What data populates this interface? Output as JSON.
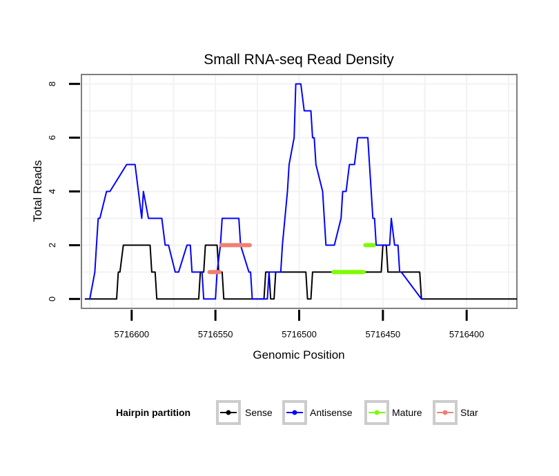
{
  "chart_data": {
    "type": "line",
    "title": "Small RNA-seq Read Density",
    "xlabel": "Genomic Position",
    "ylabel": "Total Reads",
    "xlim": [
      5716630,
      5716370
    ],
    "ylim": [
      -0.35,
      8.35
    ],
    "x_reversed": true,
    "grid": true,
    "x_ticks": [
      5716600,
      5716550,
      5716500,
      5716450,
      5716400
    ],
    "x_tick_labels": [
      "5716600",
      "5716550",
      "5716500",
      "5716450",
      "5716400"
    ],
    "y_ticks": [
      0,
      2,
      4,
      6,
      8
    ],
    "y_tick_labels": [
      "0",
      "2",
      "4",
      "6",
      "8"
    ],
    "legend": {
      "title": "Hairpin partition",
      "position": "bottom",
      "entries": [
        "Sense",
        "Antisense",
        "Mature",
        "Star"
      ]
    },
    "series": [
      {
        "name": "Sense",
        "color": "#000000",
        "x": [
          5716628,
          5716609,
          5716608,
          5716607,
          5716605,
          5716589,
          5716588,
          5716586,
          5716585,
          5716560,
          5716559,
          5716557,
          5716556,
          5716549,
          5716548,
          5716546,
          5716545,
          5716521,
          5716520,
          5716518,
          5716517,
          5716515,
          5716514,
          5716496,
          5716495,
          5716493,
          5716492,
          5716486,
          5716485,
          5716459,
          5716458,
          5716457,
          5716456,
          5716452,
          5716451,
          5716450,
          5716449,
          5716448,
          5716447,
          5716446,
          5716445,
          5716428,
          5716427,
          5716370
        ],
        "y": [
          0,
          0,
          1,
          1,
          2,
          2,
          1,
          1,
          0,
          0,
          1,
          1,
          2,
          2,
          1,
          1,
          0,
          0,
          1,
          1,
          0,
          0,
          1,
          1,
          0,
          0,
          1,
          1,
          1,
          1,
          1,
          1,
          1,
          1,
          1,
          2,
          2,
          2,
          1,
          1,
          1,
          1,
          0,
          0
        ]
      },
      {
        "name": "Antisense",
        "color": "#0000ff",
        "x": [
          5716626,
          5716625,
          5716622,
          5716621,
          5716620,
          5716619,
          5716615,
          5716613,
          5716603,
          5716602,
          5716601,
          5716600,
          5716599,
          5716598,
          5716594,
          5716593,
          5716590,
          5716588,
          5716587,
          5716582,
          5716580,
          5716578,
          5716574,
          5716572,
          5716567,
          5716565,
          5716564,
          5716562,
          5716561,
          5716558,
          5716557,
          5716550,
          5716549,
          5716547,
          5716546,
          5716540,
          5716539,
          5716536,
          5716535,
          5716530,
          5716529,
          5716528,
          5716527,
          5716519,
          5716518,
          5716517,
          5716514,
          5716513,
          5716511,
          5716510,
          5716507,
          5716506,
          5716503,
          5716502,
          5716499,
          5716497,
          5716496,
          5716494,
          5716493,
          5716492,
          5716491,
          5716490,
          5716486,
          5716485,
          5716484,
          5716483,
          5716480,
          5716479,
          5716475,
          5716474,
          5716472,
          5716470,
          5716467,
          5716465,
          5716464,
          5716462,
          5716461,
          5716460,
          5716459,
          5716458,
          5716457,
          5716456,
          5716455,
          5716454,
          5716449,
          5716448,
          5716446,
          5716445,
          5716443,
          5716441,
          5716440,
          5716439,
          5716427,
          5716426
        ],
        "y": [
          0,
          0,
          1,
          2,
          3,
          3,
          4,
          4,
          5,
          5,
          5,
          5,
          5,
          5,
          3,
          4,
          3,
          3,
          3,
          3,
          2,
          2,
          1,
          1,
          2,
          2,
          1,
          1,
          1,
          1,
          0,
          0,
          1,
          2,
          3,
          3,
          3,
          3,
          2,
          1,
          1,
          0,
          0,
          0,
          1,
          1,
          1,
          1,
          1,
          2,
          4,
          5,
          6,
          8,
          8,
          7,
          7,
          7,
          7,
          6,
          6,
          5,
          4,
          3,
          2,
          2,
          2,
          2,
          3,
          4,
          4,
          5,
          5,
          6,
          6,
          6,
          6,
          6,
          6,
          5,
          4,
          3,
          3,
          2,
          2,
          2,
          2,
          3,
          2,
          2,
          1,
          1,
          0,
          0
        ]
      },
      {
        "name": "Mature",
        "color": "#7cfc00",
        "segments": [
          {
            "x": [
              5716479.5,
              5716461.5
            ],
            "y": 1
          },
          {
            "x": [
              5716460.5,
              5716455.5
            ],
            "y": 2
          }
        ]
      },
      {
        "name": "Star",
        "color": "#f08072",
        "segments": [
          {
            "x": [
              5716553.5,
              5716547.5
            ],
            "y": 1
          },
          {
            "x": [
              5716546.5,
              5716529.5
            ],
            "y": 2
          }
        ]
      }
    ]
  }
}
